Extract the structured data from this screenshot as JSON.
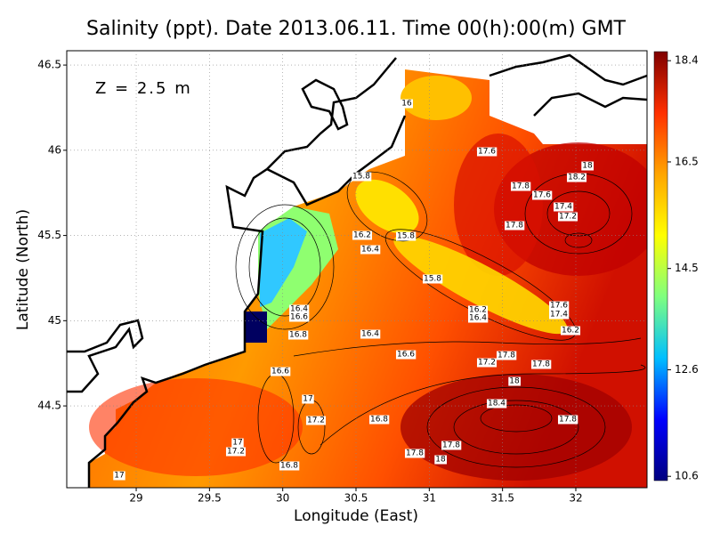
{
  "chart_data": {
    "type": "contour",
    "title": "Salinity (ppt). Date 2013.06.11. Time 00(h):00(m) GMT",
    "annotation": "Z = 2.5 m",
    "x_label": "Longitude (East)",
    "y_label": "Latitude (North)",
    "xlim": [
      28.526,
      32.486
    ],
    "ylim": [
      44.02,
      46.584
    ],
    "xticks": [
      29,
      29.5,
      30,
      30.5,
      31,
      31.5,
      32
    ],
    "yticks": [
      44.5,
      45,
      45.5,
      46,
      46.5
    ],
    "grid": true,
    "clim": [
      10.52,
      18.57
    ],
    "cticks": [
      10.6,
      12.6,
      14.5,
      16.5,
      18.4
    ],
    "colormap": [
      "#00007f",
      "#0000ff",
      "#00bfff",
      "#7fff7f",
      "#ffff00",
      "#ffa500",
      "#ff3000",
      "#7f0000"
    ],
    "contour_labels": [
      16,
      17.6,
      15.8,
      18,
      18.2,
      17.8,
      17.6,
      17.4,
      17.2,
      15.8,
      16.2,
      16.4,
      17.8,
      15.8,
      16.4,
      16.6,
      16.2,
      16.4,
      17.6,
      17.4,
      16.8,
      16.4,
      16.2,
      16.6,
      17.8,
      17.2,
      17.8,
      16.6,
      18,
      17,
      18.4,
      17.2,
      16.8,
      17.8,
      17,
      17.2,
      17.8,
      17.8,
      18,
      16.8,
      17
    ]
  }
}
